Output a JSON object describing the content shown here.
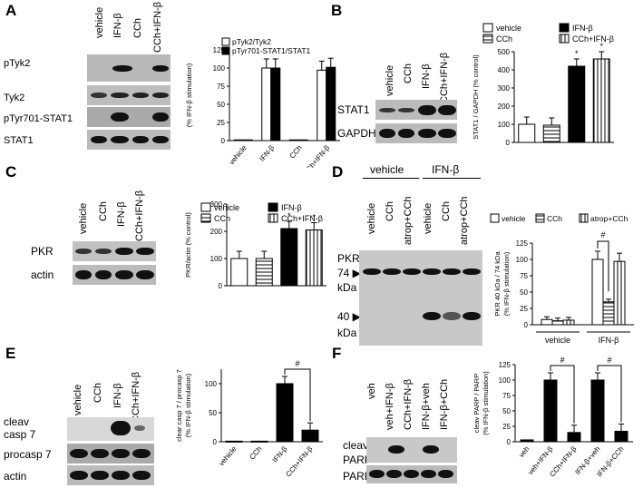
{
  "panels": {
    "A": {
      "label": "A",
      "columns": [
        "vehicle",
        "IFN-β",
        "CCh",
        "CCh+IFN-β"
      ],
      "rows": [
        "pTyk2",
        "Tyk2",
        "pTyr701-STAT1",
        "STAT1"
      ],
      "chart_data": {
        "type": "bar",
        "categories": [
          "vehicle",
          "IFN-β",
          "CCh",
          "CCh+IFN-β"
        ],
        "series": [
          {
            "name": "pTyk2/Tyk2",
            "values": [
              1,
              100,
              1,
              97
            ],
            "color": "#ffffff"
          },
          {
            "name": "pTyr701-STAT1/STAT1",
            "values": [
              1,
              100,
              1,
              101
            ],
            "color": "#000000"
          }
        ],
        "ylabel": "(% IFN-β stimulation)",
        "ylim": [
          0,
          125
        ],
        "yticks": [
          0,
          25,
          50,
          75,
          100,
          125
        ],
        "legend": "top"
      }
    },
    "B": {
      "label": "B",
      "columns": [
        "vehicle",
        "CCh",
        "IFN-β",
        "CCh+IFN-β"
      ],
      "rows": [
        "STAT1",
        "GAPDH"
      ],
      "chart_data": {
        "type": "bar",
        "categories": [
          "vehicle",
          "CCh",
          "IFN-β",
          "CCh+IFN-β"
        ],
        "values": [
          100,
          95,
          420,
          460
        ],
        "patterns": [
          "white",
          "hlines",
          "black",
          "vlines"
        ],
        "ylabel": "STAT1 / GAPDH (% control)",
        "ylim": [
          0,
          500
        ],
        "yticks": [
          0,
          100,
          200,
          300,
          400,
          500
        ],
        "legend_entries": [
          "vehicle",
          "IFN-β",
          "CCh",
          "CCh+IFN-β"
        ],
        "significance": [
          "",
          "",
          "*",
          "*"
        ]
      }
    },
    "C": {
      "label": "C",
      "columns": [
        "vehicle",
        "CCh",
        "IFN-β",
        "CCh+IFN-β"
      ],
      "rows": [
        "PKR",
        "actin"
      ],
      "chart_data": {
        "type": "bar",
        "categories": [
          "vehicle",
          "CCh",
          "IFN-β",
          "CCh+IFN-β"
        ],
        "values": [
          100,
          100,
          210,
          205
        ],
        "patterns": [
          "white",
          "hlines",
          "black",
          "vlines"
        ],
        "ylabel": "PKR/actin (% control)",
        "ylim": [
          0,
          300
        ],
        "yticks": [
          0,
          100,
          200,
          300
        ],
        "legend_entries": [
          "vehicle",
          "IFN-β",
          "CCh",
          "CCh+IFN-β"
        ],
        "significance": [
          "",
          "",
          "*",
          "*"
        ]
      }
    },
    "D": {
      "label": "D",
      "groups": [
        "vehicle",
        "IFN-β"
      ],
      "columns": [
        "vehicle",
        "CCh",
        "atrop+CCh",
        "vehicle",
        "CCh",
        "atrop+CCh"
      ],
      "rows": [
        "PKR",
        "74 ▶",
        "kDa",
        "40 ▶",
        "kDa"
      ],
      "chart_data": {
        "type": "bar",
        "categories": [
          "vehicle",
          "IFN-β"
        ],
        "series": [
          {
            "name": "vehicle",
            "values": [
              8,
              100
            ]
          },
          {
            "name": "CCh",
            "values": [
              6,
              35
            ]
          },
          {
            "name": "atrop+CCh",
            "values": [
              7,
              97
            ]
          }
        ],
        "ylabel": "PKR 40 kDa / 74 kDa (% IFN-β stimulation)",
        "ylim": [
          0,
          125
        ],
        "yticks": [
          0,
          25,
          50,
          75,
          100,
          125
        ],
        "significance": "#"
      }
    },
    "E": {
      "label": "E",
      "columns": [
        "vehicle",
        "CCh",
        "IFN-β",
        "CCh+IFN-β"
      ],
      "rows": [
        "cleav",
        "casp 7",
        "procasp 7",
        "actin"
      ],
      "chart_data": {
        "type": "bar",
        "categories": [
          "vehicle",
          "CCh",
          "IFN-β",
          "CCh+IFN-β"
        ],
        "values": [
          1,
          1,
          100,
          20
        ],
        "ylabel": "clear casp 7 / procasp 7 (% IFN-β stimulation)",
        "ylim": [
          0,
          125
        ],
        "yticks": [
          0,
          50,
          100
        ],
        "significance": "#"
      }
    },
    "F": {
      "label": "F",
      "columns": [
        "veh",
        "veh+IFN-β",
        "CCh+IFN-β",
        "IFN-β+veh",
        "IFN-β+CCh"
      ],
      "rows": [
        "cleav",
        "PARP",
        "PARP"
      ],
      "chart_data": {
        "type": "bar",
        "categories": [
          "veh",
          "veh+IFN-β",
          "CCh+IFN-β",
          "IFN-β+veh",
          "IFN-β+CCh"
        ],
        "values": [
          3,
          100,
          15,
          100,
          17
        ],
        "ylabel": "cleav PARP / PARP (% IFN-β stimulation)",
        "ylim": [
          0,
          125
        ],
        "yticks": [
          0,
          25,
          50,
          75,
          100,
          125
        ],
        "significance": [
          "#",
          "#"
        ]
      }
    }
  }
}
